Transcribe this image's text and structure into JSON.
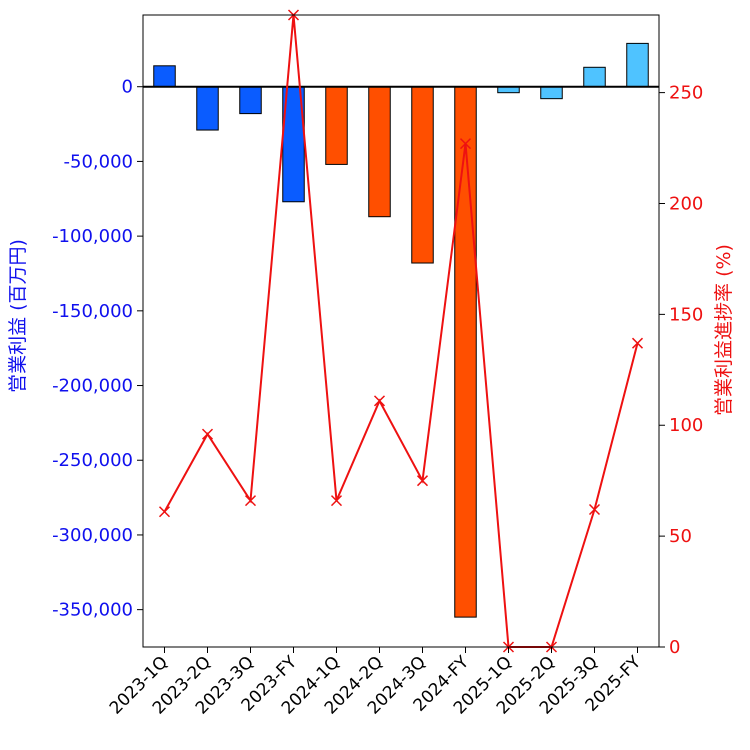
{
  "chart_data": {
    "type": "bar",
    "categories": [
      "2023-1Q",
      "2023-2Q",
      "2023-3Q",
      "2023-FY",
      "2024-1Q",
      "2024-2Q",
      "2024-3Q",
      "2024-FY",
      "2025-1Q",
      "2025-2Q",
      "2025-3Q",
      "2025-FY"
    ],
    "series": [
      {
        "name": "営業利益 (百万円)",
        "axis": "left",
        "type": "bar",
        "values": [
          14000,
          -29000,
          -18000,
          -77000,
          -52000,
          -87000,
          -118000,
          -355000,
          -4000,
          -8000,
          13000,
          29000
        ],
        "colors": [
          "#0a5cff",
          "#0a5cff",
          "#0a5cff",
          "#0a5cff",
          "#ff4f00",
          "#ff4f00",
          "#ff4f00",
          "#ff4f00",
          "#4fc3ff",
          "#4fc3ff",
          "#4fc3ff",
          "#4fc3ff"
        ]
      },
      {
        "name": "営業利益進捗率 (%)",
        "axis": "right",
        "type": "line",
        "marker": "x",
        "color": "#ee1111",
        "values": [
          61,
          96,
          66,
          285,
          66,
          111,
          75,
          227,
          0,
          0,
          62,
          137
        ]
      }
    ],
    "ylabel": "営業利益 (百万円)",
    "ylabel_right": "営業利益進捗率 (%)",
    "ylim": [
      -375000,
      48000
    ],
    "ylim_right": [
      0,
      285
    ],
    "yticks": [
      0,
      -50000,
      -100000,
      -150000,
      -200000,
      -250000,
      -300000,
      -350000
    ],
    "ytick_labels": [
      "0",
      "-50,000",
      "-100,000",
      "-150,000",
      "-200,000",
      "-250,000",
      "-300,000",
      "-350,000"
    ],
    "yticks_right": [
      0,
      50,
      100,
      150,
      200,
      250
    ],
    "ytick_labels_right": [
      "0",
      "50",
      "100",
      "150",
      "200",
      "250"
    ],
    "grid": false,
    "zero_line": true,
    "left_axis_color": "#1010ee",
    "right_axis_color": "#ee1111"
  }
}
